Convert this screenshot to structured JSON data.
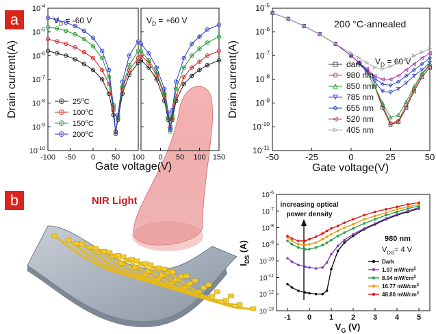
{
  "panel_labels": [
    "a",
    "b"
  ],
  "device_overlay": {
    "light_label": "NIR Light"
  },
  "chart_data": [
    {
      "type": "line",
      "ylabel": "Drain current(A)",
      "xlabel": "Gate voltage(V)",
      "yscale": "log",
      "ylim_exp": [
        -10,
        -4
      ],
      "yticks": [
        "10-10",
        "10-9",
        "10-8",
        "10-7",
        "10-6",
        "10-5",
        "10-4"
      ],
      "legend_placement": "bottom-left",
      "subplots": [
        {
          "annotation": "VD = -60 V",
          "xlim": [
            -100,
            100
          ],
          "xticks": [
            "-100",
            "-50",
            "0",
            "50",
            "100"
          ]
        },
        {
          "annotation": "VD = +60 V",
          "xlim": [
            -50,
            150
          ],
          "xticks": [
            "0",
            "50",
            "100",
            "150"
          ]
        }
      ],
      "series": [
        {
          "name": "25°C",
          "color": "#1a1a1a",
          "left": {
            "x": [
              -100,
              -80,
              -60,
              -40,
              -20,
              0,
              20,
              35,
              45,
              50,
              55,
              65,
              80,
              100
            ],
            "y": [
              -5.8,
              -5.9,
              -6.0,
              -6.15,
              -6.35,
              -6.6,
              -7.0,
              -7.6,
              -8.5,
              -9.2,
              -8.7,
              -7.6,
              -6.8,
              -6.3
            ]
          },
          "right": {
            "x": [
              -50,
              -30,
              -10,
              10,
              20,
              25,
              30,
              40,
              60,
              80,
              100,
              120,
              150
            ],
            "y": [
              -6.2,
              -6.5,
              -7.0,
              -7.9,
              -8.7,
              -9.1,
              -8.7,
              -7.9,
              -7.2,
              -6.85,
              -6.6,
              -6.4,
              -6.2
            ]
          }
        },
        {
          "name": "100°C",
          "color": "#d92020",
          "left": {
            "x": [
              -100,
              -80,
              -60,
              -40,
              -20,
              0,
              20,
              35,
              45,
              50,
              55,
              65,
              80,
              100
            ],
            "y": [
              -5.3,
              -5.4,
              -5.5,
              -5.65,
              -5.85,
              -6.1,
              -6.6,
              -7.2,
              -8.3,
              -9.2,
              -8.6,
              -7.4,
              -6.6,
              -6.1
            ]
          },
          "right": {
            "x": [
              -50,
              -30,
              -10,
              10,
              20,
              25,
              30,
              40,
              60,
              80,
              100,
              120,
              150
            ],
            "y": [
              -6.0,
              -6.3,
              -6.8,
              -7.7,
              -8.6,
              -9.0,
              -8.6,
              -7.7,
              -6.9,
              -6.5,
              -6.25,
              -6.0,
              -5.8
            ]
          }
        },
        {
          "name": "150°C",
          "color": "#1a9a2a",
          "left": {
            "x": [
              -100,
              -80,
              -60,
              -40,
              -20,
              0,
              20,
              35,
              45,
              50,
              55,
              65,
              80,
              100
            ],
            "y": [
              -4.8,
              -4.85,
              -4.95,
              -5.1,
              -5.3,
              -5.6,
              -6.1,
              -6.9,
              -8.2,
              -9.3,
              -8.6,
              -7.3,
              -6.4,
              -5.8
            ]
          },
          "right": {
            "x": [
              -50,
              -30,
              -10,
              10,
              20,
              25,
              30,
              40,
              60,
              80,
              100,
              120,
              150
            ],
            "y": [
              -5.8,
              -6.2,
              -6.7,
              -7.6,
              -8.6,
              -9.2,
              -8.5,
              -7.4,
              -6.5,
              -6.0,
              -5.7,
              -5.45,
              -5.2
            ]
          }
        },
        {
          "name": "200°C",
          "color": "#2a3ad0",
          "left": {
            "x": [
              -100,
              -80,
              -60,
              -40,
              -20,
              0,
              20,
              35,
              45,
              50,
              55,
              65,
              80,
              100
            ],
            "y": [
              -4.4,
              -4.5,
              -4.6,
              -4.75,
              -4.95,
              -5.25,
              -5.8,
              -6.6,
              -8.1,
              -9.3,
              -8.5,
              -7.1,
              -6.0,
              -5.4
            ]
          },
          "right": {
            "x": [
              -50,
              -30,
              -10,
              10,
              20,
              25,
              30,
              40,
              60,
              80,
              100,
              120,
              150
            ],
            "y": [
              -5.5,
              -5.9,
              -6.5,
              -7.4,
              -8.4,
              -9.1,
              -8.3,
              -7.1,
              -6.1,
              -5.5,
              -5.2,
              -4.9,
              -4.7
            ]
          }
        }
      ]
    },
    {
      "type": "line",
      "annotation": "200 °C-annealed",
      "annotation2": "VD = 60 V",
      "xlabel": "Gate voltage(V)",
      "ylabel": "Drain current(A)",
      "yscale": "log",
      "xlim": [
        -50,
        50
      ],
      "xticks": [
        "-50",
        "-25",
        "0",
        "25",
        "50"
      ],
      "ylim_exp": [
        -11,
        -5
      ],
      "yticks": [
        "10-11",
        "10-10",
        "10-9",
        "10-8",
        "10-7",
        "10-6",
        "10-5"
      ],
      "legend_placement": "right",
      "series": [
        {
          "name": "dark",
          "color": "#333333",
          "marker": "square",
          "x": [
            -50,
            -40,
            -30,
            -20,
            -10,
            0,
            5,
            10,
            15,
            20,
            25,
            30,
            35,
            40,
            45,
            50
          ],
          "y": [
            -5.2,
            -5.45,
            -5.75,
            -6.1,
            -6.5,
            -7.0,
            -7.3,
            -7.7,
            -8.3,
            -9.2,
            -9.9,
            -9.8,
            -9.2,
            -8.5,
            -7.9,
            -7.5
          ]
        },
        {
          "name": "980 nm",
          "color": "#e03030",
          "marker": "circle",
          "x": [
            -50,
            -40,
            -30,
            -20,
            -10,
            0,
            5,
            10,
            15,
            20,
            25,
            30,
            35,
            40,
            45,
            50
          ],
          "y": [
            -5.2,
            -5.45,
            -5.75,
            -6.1,
            -6.5,
            -7.0,
            -7.3,
            -7.7,
            -8.3,
            -9.1,
            -9.85,
            -9.75,
            -9.1,
            -8.4,
            -7.8,
            -7.4
          ]
        },
        {
          "name": "850 nm",
          "color": "#20a040",
          "marker": "triangle",
          "x": [
            -50,
            -40,
            -30,
            -20,
            -10,
            0,
            5,
            10,
            15,
            20,
            25,
            30,
            35,
            40,
            45,
            50
          ],
          "y": [
            -5.2,
            -5.45,
            -5.75,
            -6.1,
            -6.5,
            -7.0,
            -7.3,
            -7.7,
            -8.3,
            -9.0,
            -9.6,
            -9.5,
            -8.95,
            -8.3,
            -7.75,
            -7.35
          ]
        },
        {
          "name": "785 nm",
          "color": "#3344cc",
          "marker": "down-triangle",
          "x": [
            -50,
            -40,
            -30,
            -20,
            -10,
            0,
            5,
            10,
            15,
            20,
            25,
            30,
            35,
            40,
            45,
            50
          ],
          "y": [
            -5.2,
            -5.45,
            -5.75,
            -6.1,
            -6.5,
            -7.0,
            -7.3,
            -7.65,
            -8.1,
            -8.5,
            -8.55,
            -8.4,
            -8.15,
            -7.85,
            -7.6,
            -7.3
          ]
        },
        {
          "name": "655 nm",
          "color": "#2244bb",
          "marker": "diamond",
          "x": [
            -50,
            -40,
            -30,
            -20,
            -10,
            0,
            5,
            10,
            15,
            20,
            25,
            30,
            35,
            40,
            45,
            50
          ],
          "y": [
            -5.2,
            -5.45,
            -5.75,
            -6.1,
            -6.5,
            -7.0,
            -7.3,
            -7.6,
            -7.95,
            -8.2,
            -8.25,
            -8.1,
            -7.85,
            -7.6,
            -7.35,
            -7.1
          ]
        },
        {
          "name": "520 nm",
          "color": "#b03ab0",
          "marker": "left-triangle",
          "x": [
            -50,
            -40,
            -30,
            -20,
            -10,
            0,
            5,
            10,
            15,
            20,
            25,
            30,
            35,
            40,
            45,
            50
          ],
          "y": [
            -5.2,
            -5.45,
            -5.75,
            -6.1,
            -6.5,
            -7.0,
            -7.3,
            -7.55,
            -7.85,
            -8.0,
            -8.0,
            -7.85,
            -7.6,
            -7.35,
            -7.1,
            -6.9
          ]
        },
        {
          "name": "405 nm",
          "color": "#aaaaaa",
          "marker": "right-triangle",
          "x": [
            -50,
            -40,
            -30,
            -20,
            -10,
            0,
            5,
            10,
            15,
            20,
            25,
            30,
            35,
            40,
            45,
            50
          ],
          "y": [
            -5.2,
            -5.45,
            -5.75,
            -6.1,
            -6.5,
            -6.9,
            -7.1,
            -7.3,
            -7.5,
            -7.55,
            -7.45,
            -7.3,
            -7.15,
            -7.0,
            -6.85,
            -6.7
          ]
        }
      ]
    },
    {
      "type": "line",
      "annotation": "increasing optical power density",
      "annotation2": "980 nm",
      "annotation3": "VDS= 4 V",
      "xlabel": "VG (V)",
      "ylabel": "IDS (A)",
      "yscale": "log",
      "xlim": [
        -1.5,
        5.5
      ],
      "xticks": [
        "-1",
        "0",
        "1",
        "2",
        "3",
        "4",
        "5"
      ],
      "ylim_exp": [
        -13,
        -6
      ],
      "yticks": [
        "10-13",
        "10-12",
        "10-11",
        "10-10",
        "10-9",
        "10-8",
        "10-7",
        "10-6"
      ],
      "legend_placement": "bottom-right",
      "series": [
        {
          "name": "Dark",
          "color": "#111111",
          "x": [
            -1,
            -0.8,
            -0.5,
            -0.2,
            0,
            0.3,
            0.6,
            0.8,
            1.0,
            1.3,
            1.6,
            2,
            2.5,
            3,
            3.5,
            4,
            4.5,
            5
          ],
          "y": [
            -11.4,
            -11.6,
            -11.8,
            -11.9,
            -11.95,
            -12.0,
            -12.0,
            -11.8,
            -10.5,
            -9.4,
            -8.9,
            -8.5,
            -8.1,
            -7.8,
            -7.5,
            -7.25,
            -7.05,
            -6.85
          ]
        },
        {
          "name": "1.07 mW/cm2",
          "color": "#8040c0",
          "x": [
            -1,
            -0.8,
            -0.5,
            -0.2,
            0,
            0.3,
            0.6,
            0.8,
            1.0,
            1.3,
            1.6,
            2,
            2.5,
            3,
            3.5,
            4,
            4.5,
            5
          ],
          "y": [
            -9.85,
            -10.05,
            -10.25,
            -10.35,
            -10.4,
            -10.45,
            -10.4,
            -10.1,
            -9.6,
            -9.1,
            -8.75,
            -8.4,
            -8.05,
            -7.75,
            -7.45,
            -7.2,
            -7.0,
            -6.8
          ]
        },
        {
          "name": "8.04 mW/cm2",
          "color": "#20a040",
          "x": [
            -1,
            -0.8,
            -0.5,
            -0.2,
            0,
            0.3,
            0.6,
            0.8,
            1.0,
            1.3,
            1.6,
            2,
            2.5,
            3,
            3.5,
            4,
            4.5,
            5
          ],
          "y": [
            -8.8,
            -9.0,
            -9.2,
            -9.3,
            -9.3,
            -9.2,
            -9.05,
            -8.9,
            -8.75,
            -8.5,
            -8.3,
            -8.05,
            -7.75,
            -7.5,
            -7.25,
            -7.05,
            -6.85,
            -6.7
          ]
        },
        {
          "name": "16.77 mW/cm2",
          "color": "#f09a10",
          "x": [
            -1,
            -0.8,
            -0.5,
            -0.2,
            0,
            0.3,
            0.6,
            0.8,
            1.0,
            1.3,
            1.6,
            2,
            2.5,
            3,
            3.5,
            4,
            4.5,
            5
          ],
          "y": [
            -8.6,
            -8.8,
            -9.0,
            -9.05,
            -9.0,
            -8.9,
            -8.7,
            -8.55,
            -8.4,
            -8.2,
            -8.0,
            -7.8,
            -7.5,
            -7.3,
            -7.1,
            -6.9,
            -6.75,
            -6.6
          ]
        },
        {
          "name": "48.80 mW/cm2",
          "color": "#e01818",
          "x": [
            -1,
            -0.8,
            -0.5,
            -0.2,
            0,
            0.3,
            0.6,
            0.8,
            1.0,
            1.3,
            1.6,
            2,
            2.5,
            3,
            3.5,
            4,
            4.5,
            5
          ],
          "y": [
            -8.5,
            -8.65,
            -8.8,
            -8.8,
            -8.7,
            -8.55,
            -8.35,
            -8.2,
            -8.05,
            -7.9,
            -7.7,
            -7.5,
            -7.25,
            -7.05,
            -6.9,
            -6.75,
            -6.6,
            -6.5
          ]
        }
      ]
    }
  ]
}
